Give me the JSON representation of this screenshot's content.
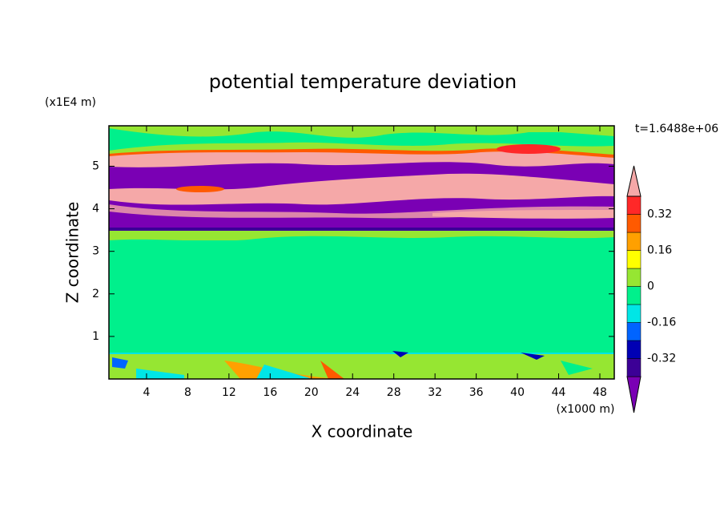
{
  "chart_data": {
    "type": "contour",
    "title": "potential temperature deviation",
    "x_label": "X coordinate",
    "y_label": "Z coordinate",
    "x_unit": "(x1000 m)",
    "y_unit": "(x1E4 m)",
    "annotation": "t=1.6488e+06",
    "xlim": [
      0.35,
      49.4
    ],
    "xticks": [
      4,
      8,
      12,
      16,
      20,
      24,
      28,
      32,
      36,
      40,
      44,
      48
    ],
    "ylim": [
      0,
      5.95
    ],
    "yticks": [
      1,
      2,
      3,
      4,
      5
    ],
    "colorbar": {
      "levels": [
        -0.4,
        -0.32,
        -0.24,
        -0.16,
        -0.08,
        0,
        0.08,
        0.16,
        0.24,
        0.32,
        0.4
      ],
      "ticks": [
        -0.32,
        -0.16,
        0,
        0.16,
        0.32
      ],
      "colors": [
        "#7a00b4",
        "#3c0096",
        "#0000b4",
        "#0064ff",
        "#00e6e6",
        "#00f08c",
        "#96e632",
        "#ffff00",
        "#ffa000",
        "#ff5a00",
        "#ff2828",
        "#f5a8a8"
      ]
    }
  }
}
